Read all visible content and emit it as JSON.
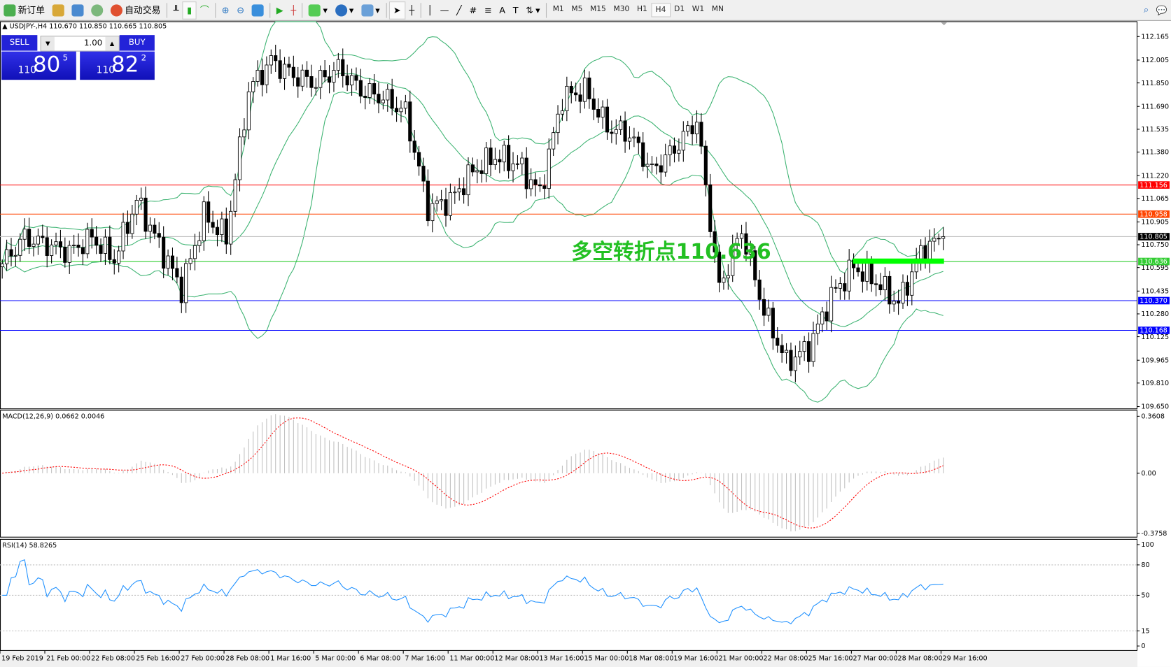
{
  "toolbar": {
    "new_order": "新订单",
    "auto_trading": "自动交易",
    "timeframes": [
      "M1",
      "M5",
      "M15",
      "M30",
      "H1",
      "H4",
      "D1",
      "W1",
      "MN"
    ],
    "active_timeframe": "H4",
    "icons": [
      "new-order-icon",
      "market-watch-icon",
      "navigator-icon",
      "signals-icon",
      "auto-trading-icon",
      "bar-chart-icon",
      "candlestick-icon",
      "line-chart-icon",
      "zoom-in-icon",
      "zoom-out-icon",
      "tile-windows-icon",
      "auto-scroll-icon",
      "chart-shift-icon",
      "indicators-icon",
      "periods-icon",
      "templates-icon",
      "cursor-icon",
      "crosshair-icon",
      "vertical-line-icon",
      "horizontal-line-icon",
      "trendline-icon",
      "equidistant-channel-icon",
      "fibonacci-icon",
      "text-icon",
      "text-label-icon",
      "arrows-icon",
      "search-icon",
      "chat-icon"
    ]
  },
  "symbol_info": "USDJPY-,H4  110.670 110.850 110.665 110.805",
  "trade_panel": {
    "sell_label": "SELL",
    "buy_label": "BUY",
    "lot": "1.00",
    "sell_price": {
      "big_prefix": "110",
      "main": "80",
      "sup": "5"
    },
    "buy_price": {
      "big_prefix": "110",
      "main": "82",
      "sup": "2"
    }
  },
  "annotation": "多空转折点110.636",
  "price_axis": {
    "ticks": [
      "112.165",
      "112.005",
      "111.850",
      "111.690",
      "111.535",
      "111.380",
      "111.220",
      "111.065",
      "110.905",
      "110.750",
      "110.595",
      "110.435",
      "110.280",
      "110.125",
      "109.965",
      "109.810",
      "109.650"
    ],
    "range": [
      109.65,
      112.165
    ]
  },
  "levels": [
    {
      "value": 111.156,
      "label": "111.156",
      "color": "#ff0000"
    },
    {
      "value": 110.958,
      "label": "110.958",
      "color": "#ff4500"
    },
    {
      "value": 110.805,
      "label": "110.805",
      "color": "#000000",
      "line": "#c0c0c0"
    },
    {
      "value": 110.636,
      "label": "110.636",
      "color": "#32cd32"
    },
    {
      "value": 110.37,
      "label": "110.370",
      "color": "#0000ff"
    },
    {
      "value": 110.168,
      "label": "110.168",
      "color": "#0000ff"
    }
  ],
  "macd": {
    "label": "MACD(12,26,9) 0.0662 0.0046",
    "ticks": [
      "0.3608",
      "0.00",
      "-0.3758"
    ],
    "range": [
      -0.3758,
      0.3608
    ]
  },
  "rsi": {
    "label": "RSI(14) 58.8265",
    "ticks": [
      "100",
      "80",
      "50",
      "15",
      "0"
    ]
  },
  "time_axis": [
    "19 Feb 2019",
    "21 Feb 00:00",
    "22 Feb 08:00",
    "25 Feb 16:00",
    "27 Feb 00:00",
    "28 Feb 08:00",
    "1 Mar 16:00",
    "5 Mar 00:00",
    "6 Mar 08:00",
    "7 Mar 16:00",
    "11 Mar 00:00",
    "12 Mar 08:00",
    "13 Mar 16:00",
    "15 Mar 00:00",
    "18 Mar 08:00",
    "19 Mar 16:00",
    "21 Mar 00:00",
    "22 Mar 08:00",
    "25 Mar 16:00",
    "27 Mar 00:00",
    "28 Mar 08:00",
    "29 Mar 16:00"
  ],
  "chart_data": {
    "type": "candlestick",
    "symbol": "USDJPY",
    "timeframe": "H4",
    "bars_per_point": 5,
    "approx_closes": [
      110.62,
      110.8,
      110.75,
      110.7,
      110.8,
      110.65,
      111.05,
      110.75,
      110.45,
      110.95,
      110.8,
      111.8,
      112.0,
      111.9,
      111.85,
      111.95,
      111.8,
      111.75,
      111.65,
      111.0,
      111.05,
      111.25,
      111.35,
      111.3,
      111.1,
      111.75,
      111.8,
      111.55,
      111.5,
      111.25,
      111.4,
      111.6,
      110.45,
      110.85,
      110.3,
      109.95,
      110.05,
      110.4,
      110.6,
      110.5,
      110.35,
      110.7,
      110.805
    ],
    "colors": {
      "bands": "#3cb371",
      "macd_hist": "#c0c0c0",
      "macd_signal": "#ff0000",
      "rsi": "#1e90ff",
      "highlight": "#00ff00"
    }
  }
}
